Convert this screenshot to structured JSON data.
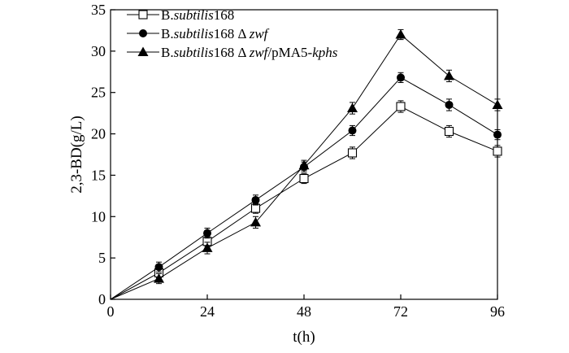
{
  "chart_data": {
    "type": "line",
    "xlabel": "t(h)",
    "ylabel": "2,3-BD(g/L)",
    "xlim": [
      0,
      96
    ],
    "ylim": [
      0,
      35
    ],
    "xticks": [
      0,
      24,
      48,
      72,
      96
    ],
    "yticks": [
      0,
      5,
      10,
      15,
      20,
      25,
      30,
      35
    ],
    "grid": false,
    "legend_position": "top-left",
    "x": [
      0,
      12,
      24,
      36,
      48,
      60,
      72,
      84,
      96
    ],
    "series": [
      {
        "name_parts": [
          {
            "text": "B.",
            "italic": false
          },
          {
            "text": "subtilis",
            "italic": true
          },
          {
            "text": "168",
            "italic": false
          }
        ],
        "marker": "open-square",
        "values": [
          0,
          3.2,
          7.0,
          11.0,
          14.6,
          17.7,
          23.3,
          20.3,
          17.9
        ],
        "errors": [
          0,
          0.6,
          0.6,
          0.6,
          0.6,
          0.7,
          0.7,
          0.7,
          0.7
        ]
      },
      {
        "name_parts": [
          {
            "text": "B.",
            "italic": false
          },
          {
            "text": "subtilis",
            "italic": true
          },
          {
            "text": "168  Δ ",
            "italic": false
          },
          {
            "text": "zwf",
            "italic": true
          }
        ],
        "marker": "filled-circle",
        "values": [
          0,
          3.9,
          8.0,
          12.0,
          16.0,
          20.4,
          26.8,
          23.5,
          19.9
        ],
        "errors": [
          0,
          0.6,
          0.6,
          0.6,
          0.6,
          0.6,
          0.6,
          0.7,
          0.6
        ]
      },
      {
        "name_parts": [
          {
            "text": "B.",
            "italic": false
          },
          {
            "text": "subtilis",
            "italic": true
          },
          {
            "text": "168 Δ ",
            "italic": false
          },
          {
            "text": "zwf",
            "italic": true
          },
          {
            "text": "/pMA5-",
            "italic": false
          },
          {
            "text": "kphs",
            "italic": true
          }
        ],
        "marker": "filled-triangle",
        "values": [
          0,
          2.5,
          6.2,
          9.3,
          16.2,
          23.1,
          32.0,
          27.0,
          23.5
        ],
        "errors": [
          0,
          0.6,
          0.7,
          0.7,
          0.6,
          0.7,
          0.6,
          0.7,
          0.7
        ]
      }
    ]
  }
}
